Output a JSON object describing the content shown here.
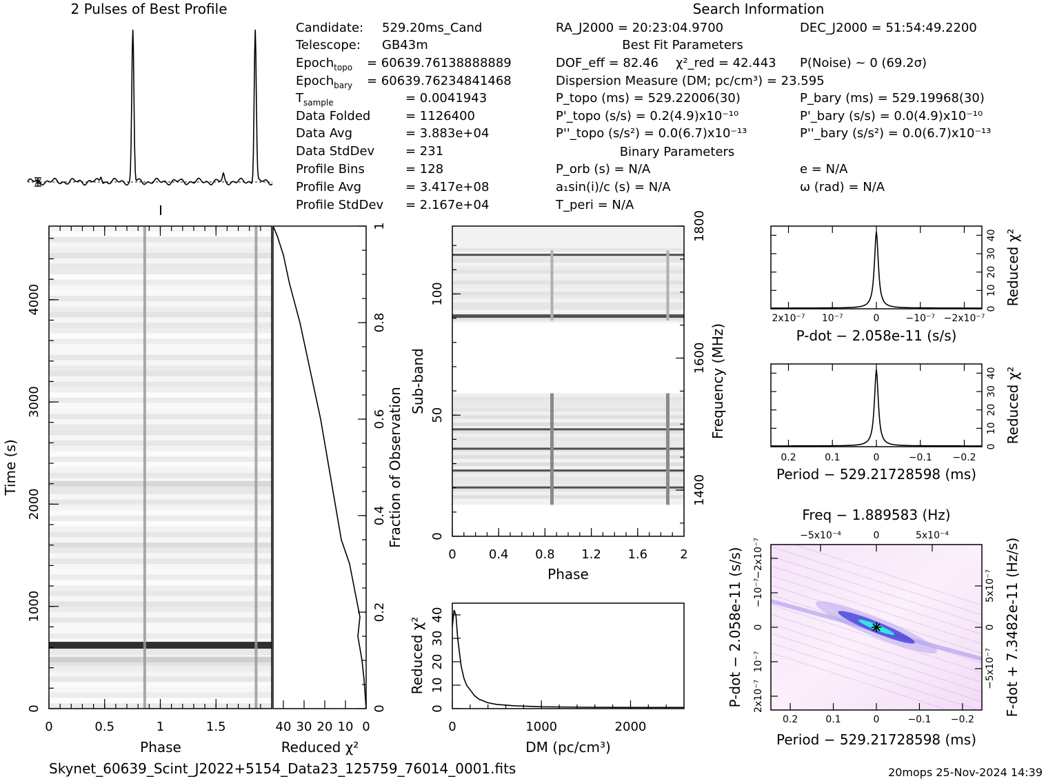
{
  "header": {
    "profile_title": "2 Pulses of Best Profile",
    "search_title": "Search Information",
    "best_fit_title": "Best Fit Parameters",
    "binary_title": "Binary Parameters"
  },
  "info_left": [
    {
      "label": "Candidate:",
      "value": "529.20ms_Cand"
    },
    {
      "label": "Telescope:",
      "value": "GB43m"
    },
    {
      "label": "Epoch",
      "sub": "topo",
      "value": "= 60639.76138888889"
    },
    {
      "label": "Epoch",
      "sub": "bary",
      "value": "= 60639.76234841468"
    },
    {
      "label": "T",
      "sub": "sample",
      "value": "= 0.0041943"
    },
    {
      "label": "Data Folded",
      "value": "= 1126400"
    },
    {
      "label": "Data Avg",
      "value": "= 3.883e+04"
    },
    {
      "label": "Data StdDev",
      "value": "= 231"
    },
    {
      "label": "Profile Bins",
      "value": "= 128"
    },
    {
      "label": "Profile Avg",
      "value": "= 3.417e+08"
    },
    {
      "label": "Profile StdDev",
      "value": "= 2.167e+04"
    }
  ],
  "info_mid": {
    "ra": "RA_J2000 = 20:23:04.9700",
    "dec": "DEC_J2000 = 51:54:49.2200",
    "dof": "DOF_eff = 82.46",
    "chi2": "χ²_red = 42.443",
    "pnoise": "P(Noise) ~ 0   (69.2σ)",
    "dm": "Dispersion Measure (DM; pc/cm³) = 23.595",
    "ptopo": "P_topo (ms) =  529.22006(30)",
    "pbary": "P_bary (ms) =  529.19968(30)",
    "pdtopo": "P'_topo (s/s) =  0.2(4.9)x10⁻¹⁰",
    "pdbary": "P'_bary (s/s) = 0.0(4.9)x10⁻¹⁰",
    "pddtopo": "P''_topo (s/s²) = 0.0(6.7)x10⁻¹³",
    "pddbary": "P''_bary (s/s²) = 0.0(6.7)x10⁻¹³",
    "porb": "P_orb (s) = N/A",
    "ecc": "e = N/A",
    "asini": "a₁sin(i)/c (s) = N/A",
    "omega": "ω (rad) = N/A",
    "tperi": "T_peri = N/A"
  },
  "footer": {
    "filename": "Skynet_60639_Scint_J2022+5154_Data23_125759_76014_0001.fits",
    "stamp": "20mops 25-Nov-2024 14:39"
  },
  "colors": {
    "ink": "#000000",
    "ppdot_low": "#ffffff",
    "ppdot_mid": "#e8c8f0",
    "ppdot_high": "#3030d8",
    "ppdot_peak": "#30e8e0"
  },
  "chart_data": [
    {
      "type": "line",
      "title": "2 Pulses of Best Profile",
      "x": [
        0.0,
        0.5,
        0.6,
        0.83,
        0.85,
        0.87,
        0.9,
        1.5,
        1.6,
        1.83,
        1.85,
        1.87,
        1.9,
        2.0
      ],
      "y": [
        0.02,
        0.03,
        0.04,
        0.05,
        1.0,
        0.05,
        0.02,
        0.03,
        0.04,
        0.05,
        1.0,
        0.05,
        0.02,
        0.02
      ],
      "xlim": [
        0,
        2
      ]
    },
    {
      "type": "heatmap",
      "xlabel": "Phase",
      "ylabel": "Time (s)",
      "xlim": [
        0,
        2
      ],
      "ylim": [
        0,
        4720
      ],
      "x_ticks": [
        "0",
        "0.5",
        "1",
        "1.5"
      ],
      "y_ticks": [
        "0",
        "1000",
        "2000",
        "3000",
        "4000"
      ],
      "pulse_phases": [
        0.86,
        1.86
      ],
      "dark_row_time": 620
    },
    {
      "type": "line",
      "xlabel": "Reduced χ²",
      "ylabel": "Fraction of Observation",
      "x_ticks": [
        "40",
        "30",
        "20",
        "10",
        "0"
      ],
      "y_ticks": [
        "0",
        "0.2",
        "0.4",
        "0.6",
        "0.8",
        "1"
      ],
      "xlim": [
        45,
        0
      ],
      "ylim": [
        0,
        1
      ],
      "x": [
        0,
        1,
        2,
        4,
        3,
        8,
        12,
        14,
        18,
        22,
        27,
        32,
        37,
        40,
        43,
        45
      ],
      "y": [
        0.0,
        0.06,
        0.1,
        0.15,
        0.19,
        0.3,
        0.35,
        0.4,
        0.5,
        0.6,
        0.7,
        0.8,
        0.88,
        0.94,
        0.98,
        1.0
      ]
    },
    {
      "type": "heatmap",
      "xlabel": "Phase",
      "ylabel": "Sub-band",
      "y2label": "Frequency (MHz)",
      "xlim": [
        0,
        2
      ],
      "ylim": [
        0,
        128
      ],
      "x_ticks": [
        "0",
        "0.4",
        "0.8",
        "1.2",
        "1.6",
        "2"
      ],
      "y_ticks": [
        "0",
        "50",
        "100"
      ],
      "y2_ticks": [
        "1400",
        "1600",
        "1800"
      ],
      "dark_bands": [
        20,
        27,
        36,
        44,
        91,
        116
      ]
    },
    {
      "type": "line",
      "xlabel": "DM (pc/cm³)",
      "ylabel": "Reduced χ²",
      "x_ticks": [
        "0",
        "1000",
        "2000"
      ],
      "y_ticks": [
        "0",
        "10",
        "20",
        "30",
        "40"
      ],
      "xlim": [
        0,
        2600
      ],
      "ylim": [
        0,
        45
      ],
      "x": [
        0,
        20,
        40,
        60,
        80,
        100,
        130,
        160,
        200,
        250,
        300,
        400,
        500,
        700,
        1000,
        1500,
        2000,
        2600
      ],
      "y": [
        35,
        42,
        40,
        30,
        24,
        18,
        13,
        10,
        8,
        5.5,
        4,
        2.5,
        1.8,
        1.2,
        0.8,
        0.6,
        0.5,
        0.5
      ]
    },
    {
      "type": "line",
      "xlabel": "P-dot − 2.058e-11 (s/s)",
      "ylabel": "Reduced χ²",
      "x_ticks": [
        "2x10⁻⁷",
        "10⁻⁷",
        "0",
        "−10⁻⁷",
        "−2x10⁻⁷"
      ],
      "y_ticks": [
        "0",
        "10",
        "20",
        "30",
        "40"
      ],
      "xlim": [
        2.4e-07,
        -2.4e-07
      ],
      "ylim": [
        0,
        45
      ],
      "x": [
        2.4e-07,
        1e-07,
        5e-08,
        2e-08,
        1e-08,
        5e-09,
        0,
        -5e-09,
        -1e-08,
        -2e-08,
        -5e-08,
        -1e-07,
        -2.4e-07
      ],
      "y": [
        0.5,
        0.8,
        1.5,
        4,
        9,
        20,
        42,
        20,
        9,
        4,
        1.5,
        0.8,
        0.5
      ]
    },
    {
      "type": "line",
      "xlabel": "Period − 529.21728598 (ms)",
      "ylabel": "Reduced χ²",
      "x_ticks": [
        "0.2",
        "0.1",
        "0",
        "−0.1",
        "−0.2"
      ],
      "y_ticks": [
        "0",
        "10",
        "20",
        "30",
        "40"
      ],
      "xlim": [
        0.245,
        -0.245
      ],
      "ylim": [
        0,
        45
      ],
      "x": [
        0.245,
        0.1,
        0.05,
        0.025,
        0.012,
        0.006,
        0,
        -0.006,
        -0.012,
        -0.025,
        -0.05,
        -0.1,
        -0.245
      ],
      "y": [
        0.5,
        0.8,
        1.8,
        4,
        10,
        22,
        42,
        22,
        10,
        4,
        1.8,
        0.8,
        0.5
      ]
    },
    {
      "type": "heatmap",
      "title": "Freq − 1.889583 (Hz)",
      "xlabel": "Period − 529.21728598 (ms)",
      "ylabel": "P-dot − 2.058e-11 (s/s)",
      "y2label": "F-dot + 7.3482e-11 (Hz/s)",
      "x_ticks": [
        "0.2",
        "0.1",
        "0",
        "−0.1",
        "−0.2"
      ],
      "x2_ticks": [
        "−5x10⁻⁴",
        "0",
        "5x10⁻⁴"
      ],
      "y_ticks": [
        "2x10⁻⁷",
        "10⁻⁷",
        "0",
        "−10⁻⁷",
        "−2x10⁻⁷"
      ],
      "y2_ticks": [
        "−5x10⁻⁷",
        "0",
        "5x10⁻⁷"
      ],
      "xlim": [
        0.245,
        -0.245
      ],
      "ylim": [
        2.4e-07,
        -2.4e-07
      ],
      "peak": [
        0,
        0
      ]
    }
  ]
}
